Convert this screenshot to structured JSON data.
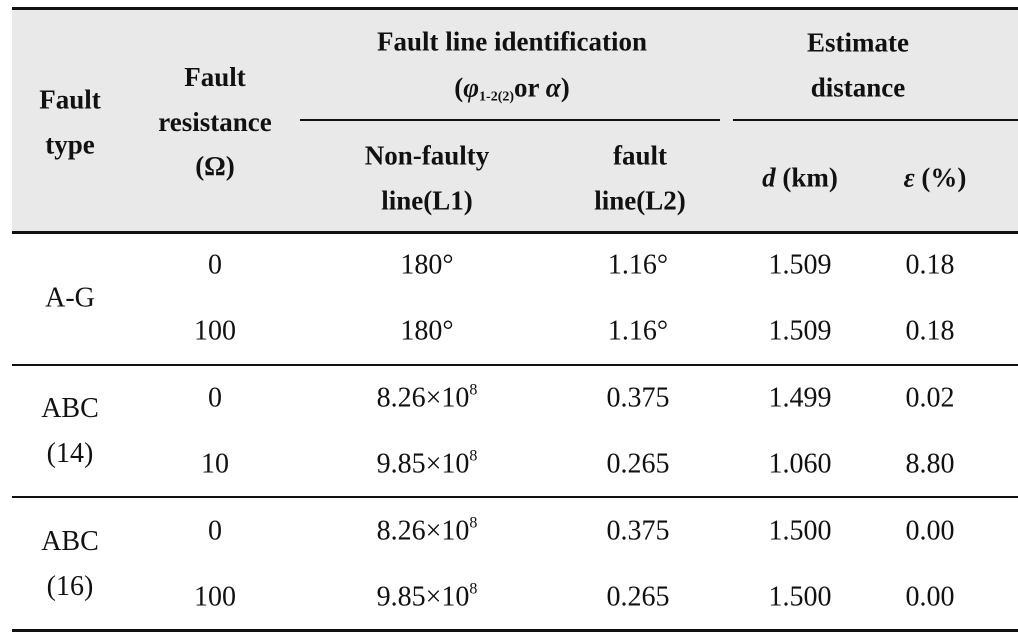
{
  "header": {
    "fault_type": "Fault type",
    "fault_resistance": "Fault resistance (Ω)",
    "fault_line_identification": "Fault line identification",
    "identification_symbol": {
      "open": "(",
      "phi": "φ",
      "sub": "1-2(2)",
      "or": "or ",
      "alpha": "α",
      "close": ")"
    },
    "estimate_distance": "Estimate distance",
    "non_faulty_line": "Non-faulty line(L1)",
    "fault_line": "fault line(L2)",
    "distance": {
      "symbol": "d",
      "unit": " (km)"
    },
    "error": {
      "symbol": "ε",
      "unit": " (%)"
    }
  },
  "groups": [
    {
      "type": "A-G",
      "rows": [
        [
          "0",
          "180°",
          "1.16°",
          "1.509",
          "0.18"
        ],
        [
          "100",
          "180°",
          "1.16°",
          "1.509",
          "0.18"
        ]
      ]
    },
    {
      "type": "ABC (14)",
      "rows": [
        [
          "0",
          {
            "base": "8.26×10",
            "exp": "8"
          },
          "0.375",
          "1.499",
          "0.02"
        ],
        [
          "10",
          {
            "base": "9.85×10",
            "exp": "8"
          },
          "0.265",
          "1.060",
          "8.80"
        ]
      ]
    },
    {
      "type": "ABC (16)",
      "rows": [
        [
          "0",
          {
            "base": "8.26×10",
            "exp": "8"
          },
          "0.375",
          "1.500",
          "0.00"
        ],
        [
          "100",
          {
            "base": "9.85×10",
            "exp": "8"
          },
          "0.265",
          "1.500",
          "0.00"
        ]
      ]
    }
  ]
}
